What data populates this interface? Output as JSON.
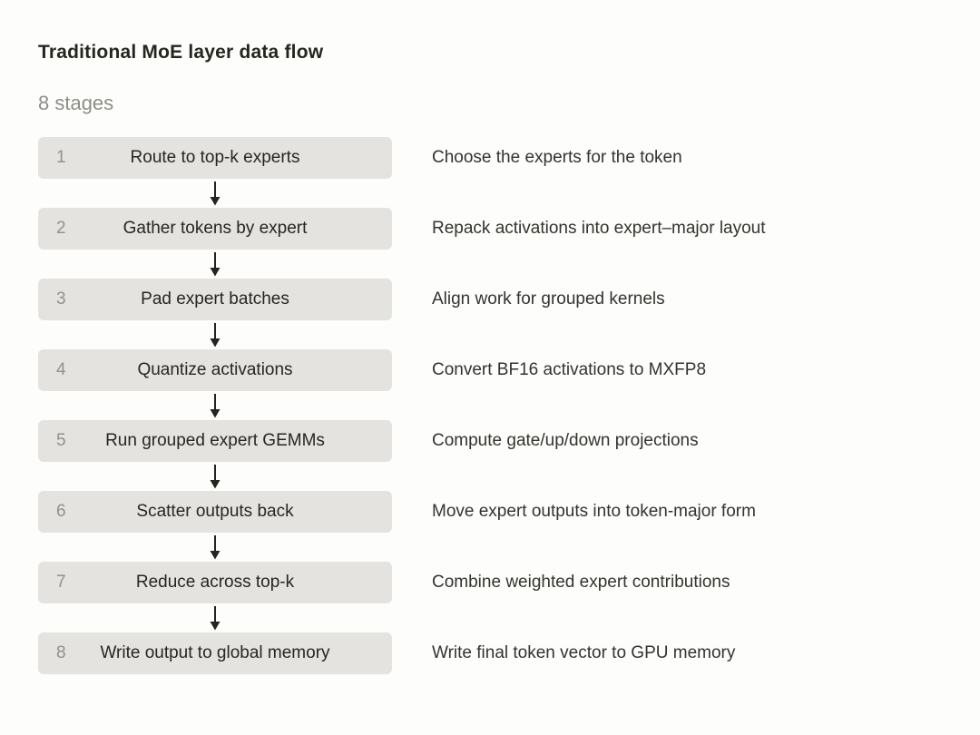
{
  "page": {
    "title": "Traditional MoE layer data flow",
    "subtitle": "8 stages"
  },
  "stages": [
    {
      "num": "1",
      "label": "Route to top-k experts",
      "description": "Choose the experts for the token"
    },
    {
      "num": "2",
      "label": "Gather tokens by expert",
      "description": "Repack activations into expert–major layout"
    },
    {
      "num": "3",
      "label": "Pad expert batches",
      "description": "Align work for grouped kernels"
    },
    {
      "num": "4",
      "label": "Quantize activations",
      "description": "Convert BF16 activations to MXFP8"
    },
    {
      "num": "5",
      "label": "Run grouped expert GEMMs",
      "description": "Compute gate/up/down projections"
    },
    {
      "num": "6",
      "label": "Scatter outputs back",
      "description": "Move expert outputs into token-major form"
    },
    {
      "num": "7",
      "label": "Reduce across top-k",
      "description": "Combine weighted expert contributions"
    },
    {
      "num": "8",
      "label": "Write output to global memory",
      "description": "Write final token vector to GPU memory"
    }
  ],
  "colors": {
    "background": "#fdfdfb",
    "box_fill": "#e4e3df",
    "box_number": "#92918b",
    "box_label": "#272621",
    "description_text": "#34332e",
    "title_text": "#26251f",
    "subtitle_text": "#8e8d88",
    "arrow": "#25241f"
  }
}
